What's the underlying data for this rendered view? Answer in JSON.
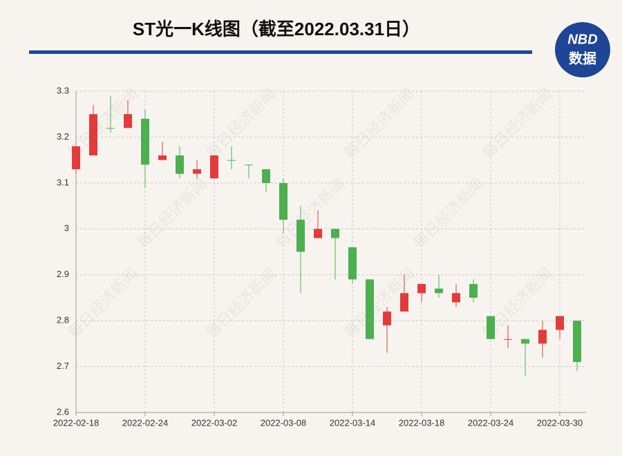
{
  "chart_data": {
    "type": "candlestick",
    "title": "ST光一K线图（截至2022.03.31日）",
    "logo": {
      "top": "NBD",
      "bottom": "数据"
    },
    "watermark": "每日经济新闻",
    "categories": [
      "2022-02-18",
      null,
      null,
      null,
      "2022-02-24",
      null,
      null,
      null,
      "2022-03-02",
      null,
      null,
      null,
      "2022-03-08",
      null,
      null,
      null,
      "2022-03-14",
      null,
      null,
      null,
      "2022-03-18",
      null,
      null,
      null,
      "2022-03-24",
      null,
      null,
      null,
      "2022-03-30",
      null
    ],
    "series": [
      {
        "name": "open",
        "values": [
          3.13,
          3.16,
          3.22,
          3.22,
          3.24,
          3.15,
          3.16,
          3.12,
          3.11,
          3.15,
          3.14,
          3.13,
          3.1,
          3.02,
          2.98,
          3.0,
          2.96,
          2.89,
          2.79,
          2.82,
          2.86,
          2.87,
          2.84,
          2.88,
          2.81,
          2.76,
          2.76,
          2.75,
          2.78,
          2.8
        ]
      },
      {
        "name": "high",
        "values": [
          3.18,
          3.27,
          3.29,
          3.28,
          3.26,
          3.19,
          3.18,
          3.15,
          3.16,
          3.18,
          3.14,
          3.13,
          3.11,
          3.05,
          3.04,
          3.0,
          2.96,
          2.89,
          2.83,
          2.9,
          2.88,
          2.9,
          2.88,
          2.89,
          2.81,
          2.79,
          2.76,
          2.8,
          2.81,
          2.8
        ]
      },
      {
        "name": "low",
        "values": [
          3.12,
          3.16,
          3.21,
          3.22,
          3.09,
          3.15,
          3.11,
          3.11,
          3.11,
          3.13,
          3.11,
          3.08,
          2.99,
          2.86,
          2.98,
          2.89,
          2.88,
          2.76,
          2.73,
          2.82,
          2.84,
          2.85,
          2.83,
          2.84,
          2.76,
          2.74,
          2.68,
          2.72,
          2.76,
          2.69
        ]
      },
      {
        "name": "close",
        "values": [
          3.18,
          3.25,
          3.22,
          3.25,
          3.14,
          3.16,
          3.12,
          3.13,
          3.16,
          3.15,
          3.14,
          3.1,
          3.02,
          2.95,
          3.0,
          2.98,
          2.89,
          2.76,
          2.82,
          2.86,
          2.88,
          2.86,
          2.86,
          2.85,
          2.76,
          2.76,
          2.75,
          2.78,
          2.81,
          2.71
        ]
      }
    ],
    "up_color": "#e23b3b",
    "down_color": "#4caf50",
    "ylim": [
      2.6,
      3.3
    ],
    "yticks": [
      2.6,
      2.7,
      2.8,
      2.9,
      3,
      3.1,
      3.2,
      3.3
    ],
    "grid": true
  }
}
